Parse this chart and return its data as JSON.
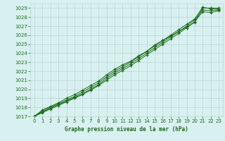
{
  "title": "Graphe pression niveau de la mer (hPa)",
  "x": [
    0,
    1,
    2,
    3,
    4,
    5,
    6,
    7,
    8,
    9,
    10,
    11,
    12,
    13,
    14,
    15,
    16,
    17,
    18,
    19,
    20,
    21,
    22,
    23
  ],
  "line1": [
    1017.0,
    1017.7,
    1018.1,
    1018.5,
    1019.0,
    1019.4,
    1019.9,
    1020.4,
    1020.9,
    1021.6,
    1022.2,
    1022.7,
    1023.1,
    1023.7,
    1024.2,
    1024.9,
    1025.4,
    1025.9,
    1026.4,
    1026.9,
    1027.4,
    1029.0,
    1029.0,
    1029.0
  ],
  "line2": [
    1017.0,
    1017.6,
    1018.0,
    1018.4,
    1018.8,
    1019.2,
    1019.7,
    1020.2,
    1020.7,
    1021.4,
    1022.0,
    1022.5,
    1023.0,
    1023.6,
    1024.2,
    1024.8,
    1025.4,
    1026.0,
    1026.6,
    1027.2,
    1027.8,
    1029.1,
    1028.9,
    1028.9
  ],
  "line3": [
    1017.0,
    1017.5,
    1017.9,
    1018.3,
    1018.7,
    1019.1,
    1019.5,
    1020.0,
    1020.5,
    1021.2,
    1021.8,
    1022.3,
    1022.8,
    1023.4,
    1024.0,
    1024.6,
    1025.2,
    1025.8,
    1026.4,
    1027.0,
    1027.7,
    1028.8,
    1028.7,
    1028.8
  ],
  "line4": [
    1017.0,
    1017.4,
    1017.8,
    1018.2,
    1018.6,
    1019.0,
    1019.4,
    1019.9,
    1020.4,
    1021.0,
    1021.6,
    1022.1,
    1022.6,
    1023.2,
    1023.8,
    1024.4,
    1025.0,
    1025.6,
    1026.2,
    1026.8,
    1027.5,
    1028.6,
    1028.5,
    1028.7
  ],
  "line_color": "#1a6b1a",
  "bg_color": "#d9f0f0",
  "grid_color": "#b8d4d4",
  "text_color": "#1a6b1a",
  "ylim_min": 1017,
  "ylim_max": 1029.5,
  "yticks": [
    1017,
    1018,
    1019,
    1020,
    1021,
    1022,
    1023,
    1024,
    1025,
    1026,
    1027,
    1028,
    1029
  ],
  "xlim_min": -0.5,
  "xlim_max": 23.5,
  "xticks": [
    0,
    1,
    2,
    3,
    4,
    5,
    6,
    7,
    8,
    9,
    10,
    11,
    12,
    13,
    14,
    15,
    16,
    17,
    18,
    19,
    20,
    21,
    22,
    23
  ]
}
